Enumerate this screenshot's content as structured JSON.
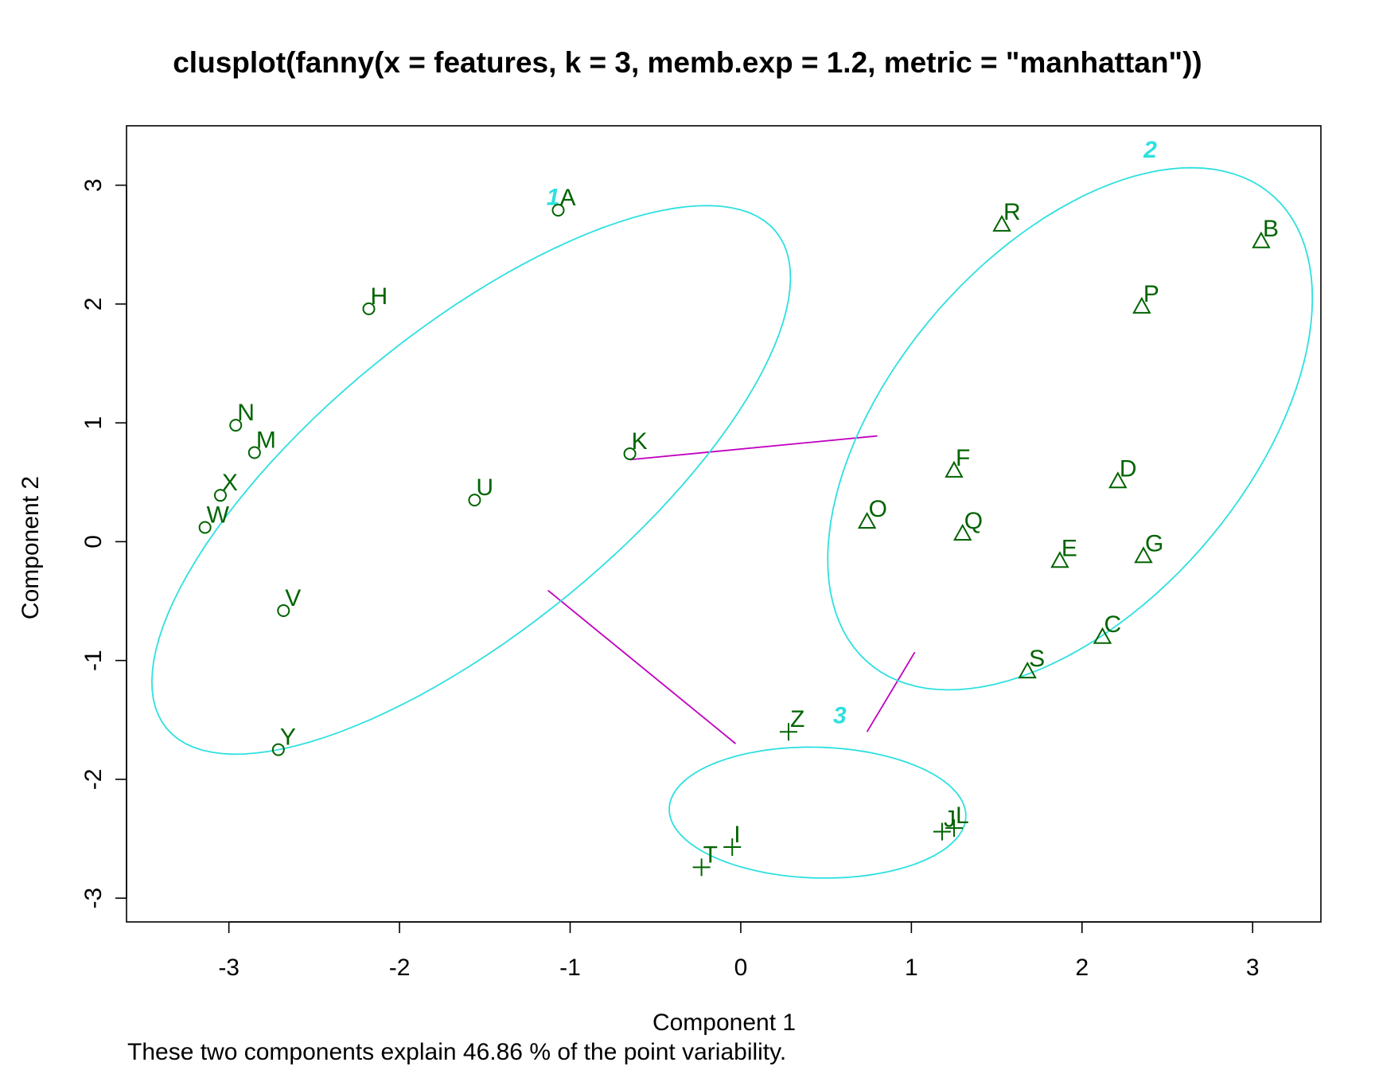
{
  "chart_data": {
    "type": "scatter",
    "title": "clusplot(fanny(x = features, k = 3, memb.exp = 1.2, metric = \"manhattan\"))",
    "xlabel": "Component 1",
    "ylabel": "Component 2",
    "subtitle": "These two components explain 46.86 % of the point variability.",
    "xlim": [
      -3.6,
      3.4
    ],
    "ylim": [
      -3.2,
      3.5
    ],
    "x_ticks": [
      -3,
      -2,
      -1,
      0,
      1,
      2,
      3
    ],
    "y_ticks": [
      -3,
      -2,
      -1,
      0,
      1,
      2,
      3
    ],
    "grid": false,
    "colors": {
      "points": "#006400",
      "ellipse": "#2ee0e0",
      "ellipse_label": "#2ee0e0",
      "lines": "#c000c0"
    },
    "clusters": [
      {
        "label": "1",
        "marker": "circle",
        "label_pos": [
          -1.1,
          2.9
        ],
        "ellipse": {
          "cx": -1.58,
          "cy": 0.52,
          "a": 2.78,
          "b": 1.05,
          "angle_deg": 53
        }
      },
      {
        "label": "2",
        "marker": "triangle",
        "label_pos": [
          2.4,
          3.3
        ],
        "ellipse": {
          "cx": 1.93,
          "cy": 0.95,
          "a": 2.35,
          "b": 1.15,
          "angle_deg": 66
        }
      },
      {
        "label": "3",
        "marker": "plus",
        "label_pos": [
          0.58,
          -1.46
        ],
        "ellipse": {
          "cx": 0.45,
          "cy": -2.28,
          "a": 0.87,
          "b": 0.55,
          "angle_deg": -3
        }
      }
    ],
    "points": [
      {
        "label": "A",
        "x": -1.07,
        "y": 2.79,
        "cluster": 1
      },
      {
        "label": "H",
        "x": -2.18,
        "y": 1.96,
        "cluster": 1
      },
      {
        "label": "N",
        "x": -2.96,
        "y": 0.98,
        "cluster": 1
      },
      {
        "label": "M",
        "x": -2.85,
        "y": 0.75,
        "cluster": 1
      },
      {
        "label": "X",
        "x": -3.05,
        "y": 0.39,
        "cluster": 1
      },
      {
        "label": "W",
        "x": -3.14,
        "y": 0.12,
        "cluster": 1
      },
      {
        "label": "U",
        "x": -1.56,
        "y": 0.35,
        "cluster": 1
      },
      {
        "label": "K",
        "x": -0.65,
        "y": 0.74,
        "cluster": 1
      },
      {
        "label": "V",
        "x": -2.68,
        "y": -0.58,
        "cluster": 1
      },
      {
        "label": "Y",
        "x": -2.71,
        "y": -1.75,
        "cluster": 1
      },
      {
        "label": "R",
        "x": 1.53,
        "y": 2.67,
        "cluster": 2
      },
      {
        "label": "B",
        "x": 3.05,
        "y": 2.53,
        "cluster": 2
      },
      {
        "label": "P",
        "x": 2.35,
        "y": 1.98,
        "cluster": 2
      },
      {
        "label": "F",
        "x": 1.25,
        "y": 0.6,
        "cluster": 2
      },
      {
        "label": "D",
        "x": 2.21,
        "y": 0.51,
        "cluster": 2
      },
      {
        "label": "O",
        "x": 0.74,
        "y": 0.17,
        "cluster": 2
      },
      {
        "label": "Q",
        "x": 1.3,
        "y": 0.07,
        "cluster": 2
      },
      {
        "label": "E",
        "x": 1.87,
        "y": -0.16,
        "cluster": 2
      },
      {
        "label": "G",
        "x": 2.36,
        "y": -0.12,
        "cluster": 2
      },
      {
        "label": "C",
        "x": 2.12,
        "y": -0.8,
        "cluster": 2
      },
      {
        "label": "S",
        "x": 1.68,
        "y": -1.09,
        "cluster": 2
      },
      {
        "label": "Z",
        "x": 0.28,
        "y": -1.6,
        "cluster": 3
      },
      {
        "label": "I",
        "x": -0.05,
        "y": -2.57,
        "cluster": 3
      },
      {
        "label": "T",
        "x": -0.23,
        "y": -2.74,
        "cluster": 3
      },
      {
        "label": "J",
        "x": 1.18,
        "y": -2.44,
        "cluster": 3
      },
      {
        "label": "L",
        "x": 1.25,
        "y": -2.41,
        "cluster": 3
      }
    ],
    "segments": [
      {
        "x1": -0.65,
        "y1": 0.69,
        "x2": 0.8,
        "y2": 0.89
      },
      {
        "x1": -1.13,
        "y1": -0.41,
        "x2": -0.03,
        "y2": -1.7
      },
      {
        "x1": 1.02,
        "y1": -0.93,
        "x2": 0.74,
        "y2": -1.6
      }
    ]
  }
}
